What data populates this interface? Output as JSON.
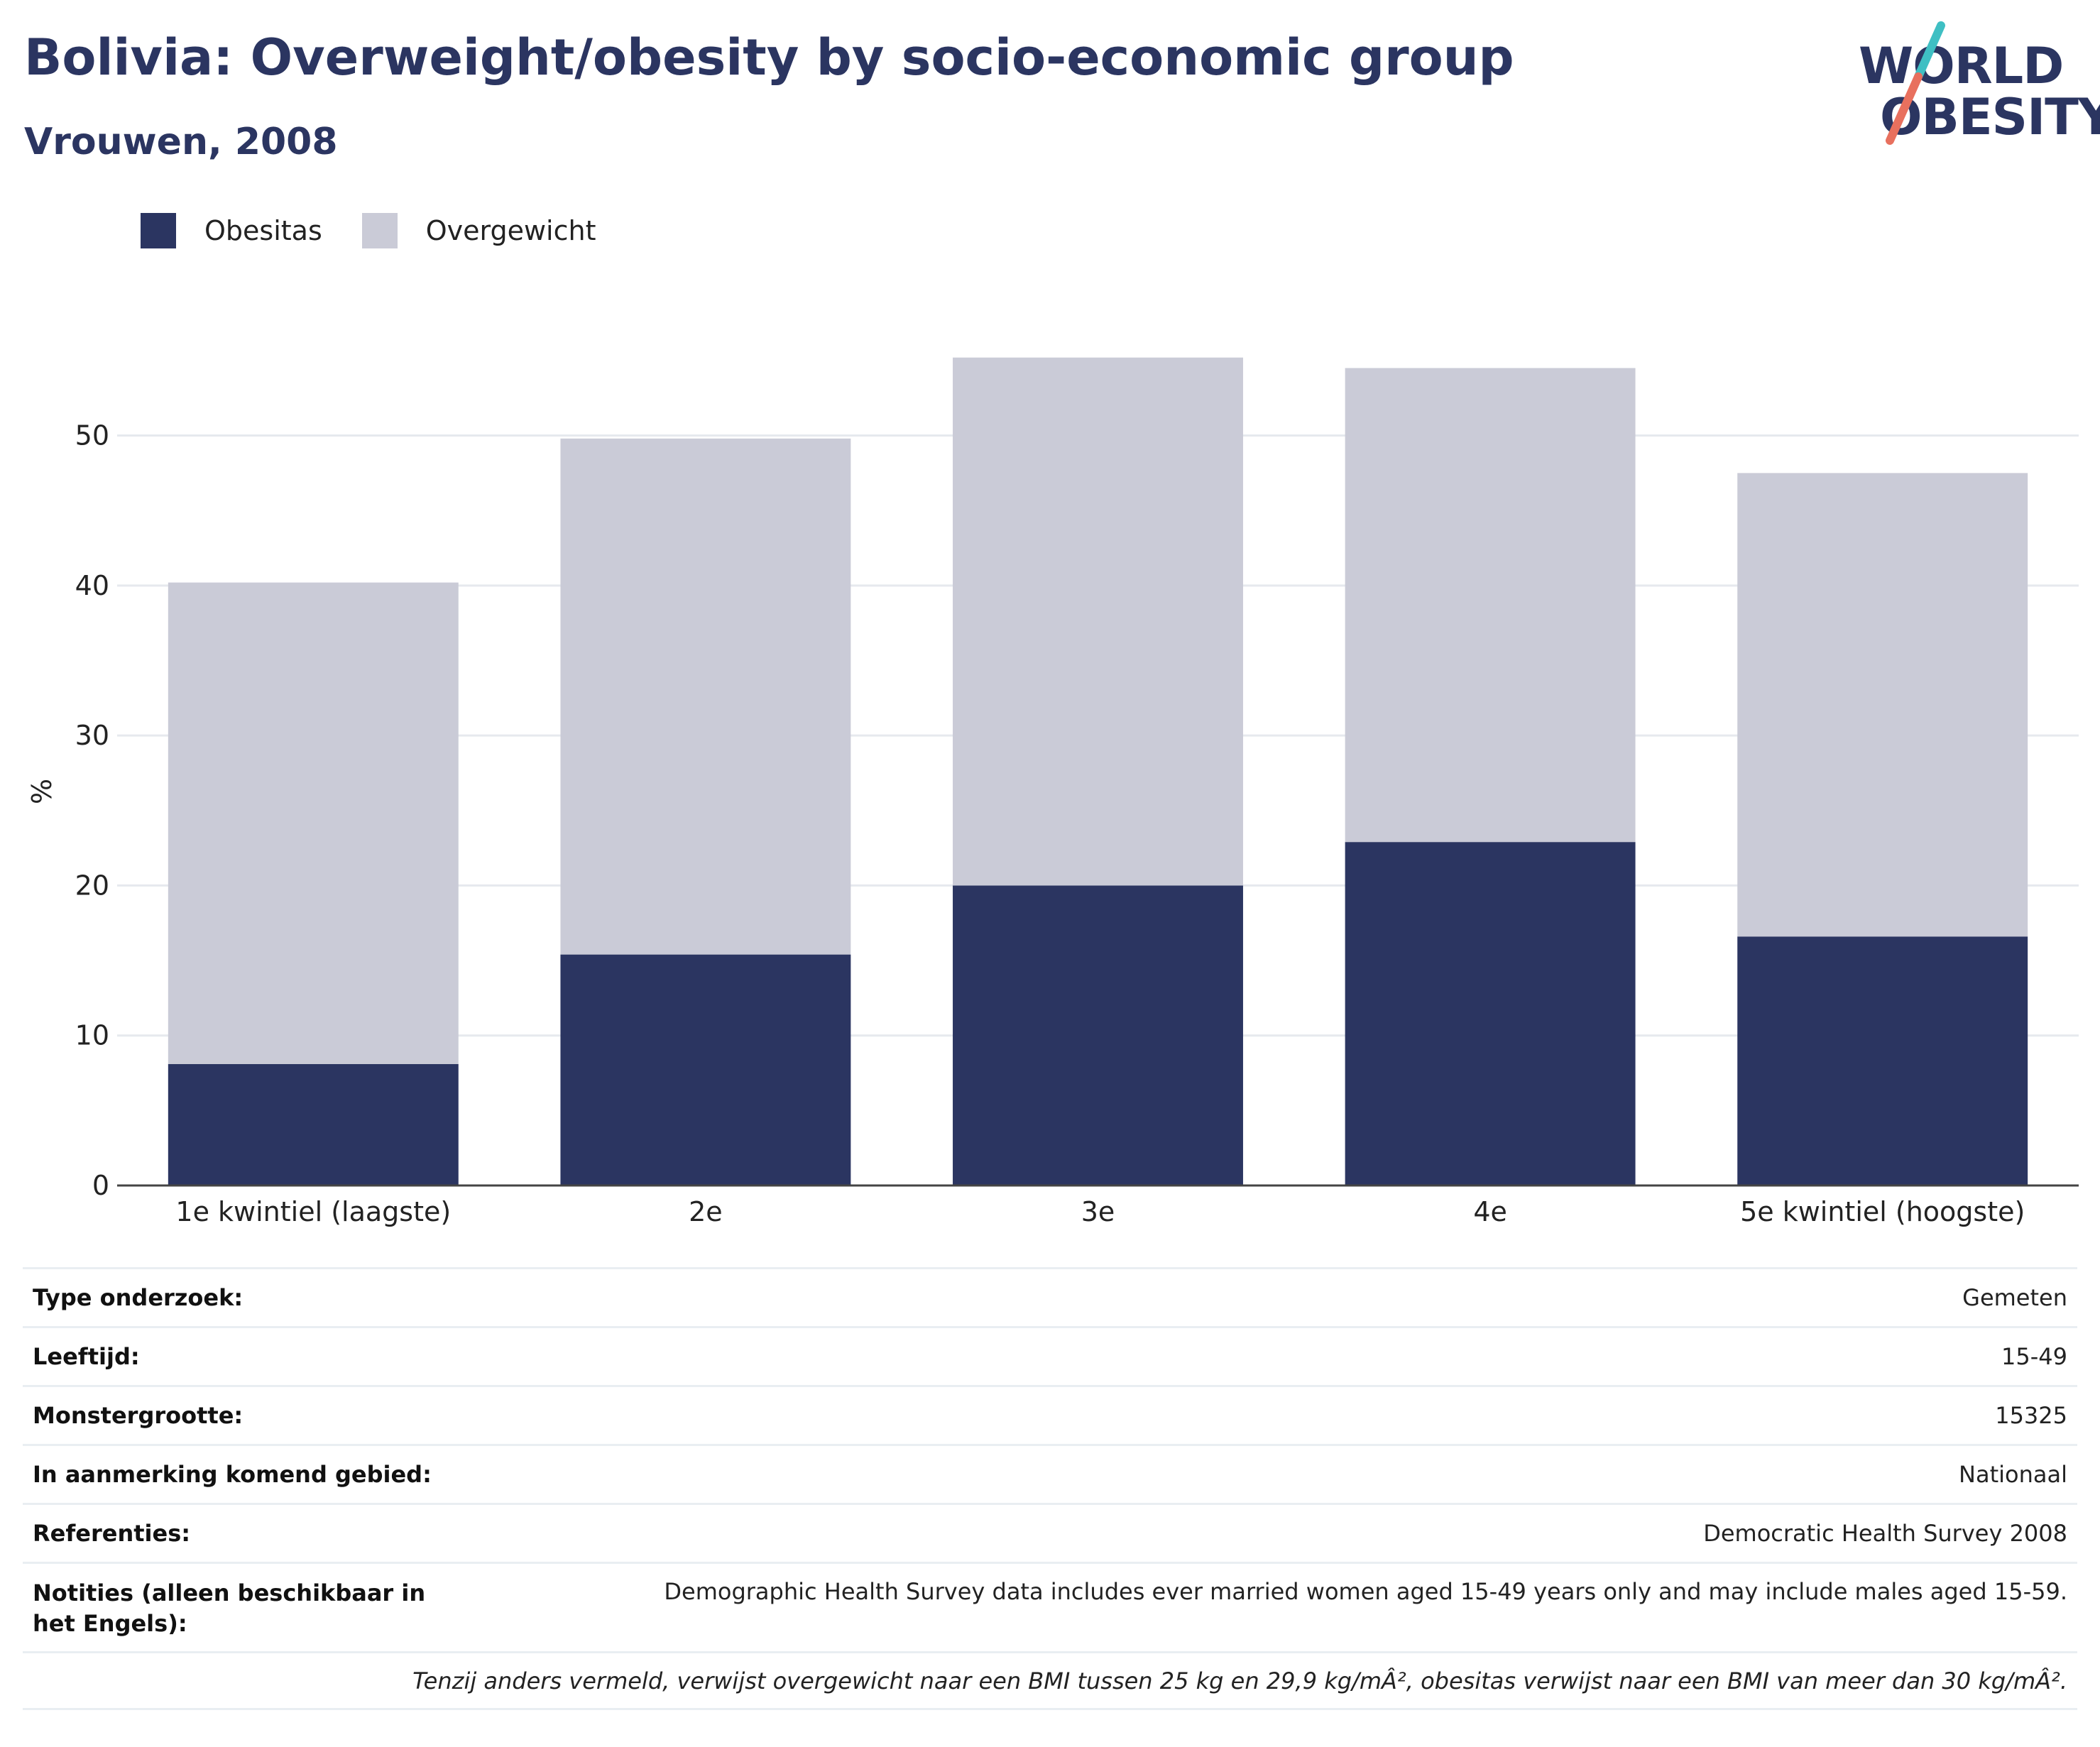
{
  "header": {
    "title": "Bolivia: Overweight/obesity by socio-economic group",
    "subtitle": "Vrouwen, 2008"
  },
  "logo": {
    "line1": "WORLD",
    "line2": "OBESITY",
    "slash_colors": [
      "#3fbfc3",
      "#e8705e"
    ]
  },
  "chart_data": {
    "type": "bar",
    "stacked": true,
    "categories": [
      "1e kwintiel (laagste)",
      "2e",
      "3e",
      "4e",
      "5e kwintiel (hoogste)"
    ],
    "series": [
      {
        "name": "Obesitas",
        "color": "#2b3561",
        "values": [
          8.1,
          15.4,
          20.0,
          22.9,
          16.6
        ]
      },
      {
        "name": "Overgewicht",
        "color": "#cacbd7",
        "values": [
          32.1,
          34.4,
          35.2,
          31.6,
          30.9
        ]
      }
    ],
    "ylabel": "%",
    "xlabel": "",
    "ylim": [
      0,
      62
    ],
    "yticks": [
      0,
      10,
      20,
      30,
      40,
      50
    ],
    "grid": true,
    "legend_position": "top-left"
  },
  "info": {
    "rows": [
      {
        "label": "Type onderzoek:",
        "value": "Gemeten"
      },
      {
        "label": "Leeftijd:",
        "value": "15-49"
      },
      {
        "label": "Monstergrootte:",
        "value": "15325"
      },
      {
        "label": "In aanmerking komend gebied:",
        "value": "Nationaal"
      },
      {
        "label": "Referenties:",
        "value": "Democratic Health Survey 2008"
      },
      {
        "label": "Notities (alleen beschikbaar in het Engels):",
        "value": "Demographic Health Survey data includes ever married women aged 15-49 years only and may include males aged 15-59."
      }
    ],
    "footnote": "Tenzij anders vermeld, verwijst overgewicht naar een BMI tussen 25 kg en 29,9 kg/mÂ², obesitas verwijst naar een BMI van meer dan 30 kg/mÂ²."
  }
}
